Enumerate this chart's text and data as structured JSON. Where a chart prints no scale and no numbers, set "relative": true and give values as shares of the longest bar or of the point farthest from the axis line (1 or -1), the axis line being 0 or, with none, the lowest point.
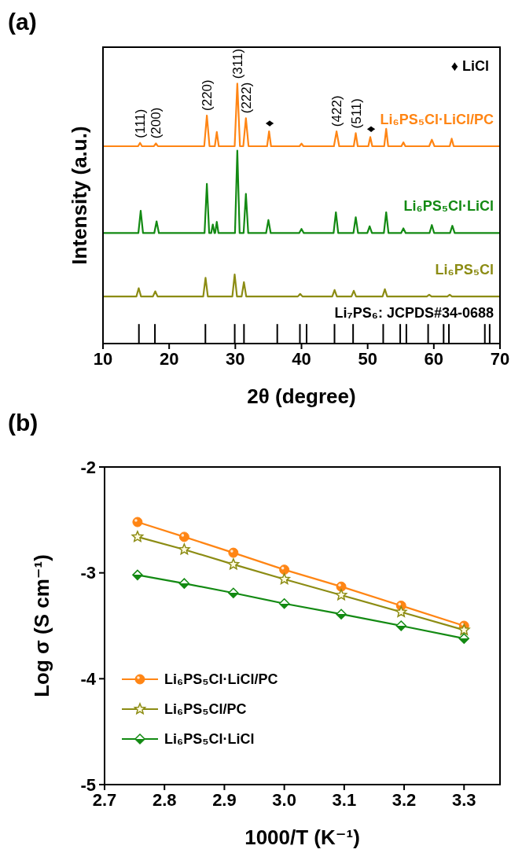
{
  "chart_data": [
    {
      "type": "line",
      "title": "(a)",
      "xlabel": "2θ (degree)",
      "ylabel": "Intensity (a.u.)",
      "relative": true,
      "xlim": [
        10,
        70
      ],
      "xticks": [
        10,
        20,
        30,
        40,
        50,
        60,
        70
      ],
      "marker": "none",
      "legend": false,
      "series": [
        {
          "name": "Li₆PS₅Cl·LiCl/PC",
          "color": "#ff8514",
          "x": [
            10,
            15.3,
            15.6,
            15.9,
            17.7,
            18.0,
            18.3,
            25.3,
            25.7,
            26.1,
            26.9,
            27.2,
            27.5,
            29.9,
            30.3,
            30.7,
            31.2,
            31.6,
            32.0,
            34.8,
            35.1,
            35.4,
            39.7,
            40.0,
            40.3,
            44.9,
            45.3,
            45.7,
            47.9,
            48.2,
            48.5,
            50.1,
            50.4,
            50.7,
            52.5,
            52.8,
            53.1,
            55.1,
            55.4,
            55.7,
            59.3,
            59.7,
            60.1,
            62.4,
            62.7,
            63.0,
            70
          ],
          "values": [
            0.759,
            0.759,
            0.772,
            0.759,
            0.759,
            0.77,
            0.759,
            0.759,
            0.877,
            0.759,
            0.759,
            0.814,
            0.759,
            0.759,
            1.0,
            0.759,
            0.759,
            0.867,
            0.759,
            0.759,
            0.816,
            0.759,
            0.759,
            0.769,
            0.759,
            0.759,
            0.816,
            0.759,
            0.759,
            0.809,
            0.759,
            0.759,
            0.794,
            0.759,
            0.759,
            0.826,
            0.759,
            0.759,
            0.774,
            0.759,
            0.759,
            0.784,
            0.759,
            0.759,
            0.788,
            0.759,
            0.759
          ]
        },
        {
          "name": "Li₆PS₅Cl·LiCl",
          "color": "#138a13",
          "x": [
            10,
            15.35,
            15.7,
            16.05,
            17.75,
            18.1,
            18.45,
            25.35,
            25.7,
            26.05,
            26.35,
            26.6,
            26.85,
            26.95,
            27.2,
            27.45,
            29.95,
            30.3,
            30.65,
            31.25,
            31.6,
            31.95,
            34.65,
            35.0,
            35.35,
            39.65,
            40.0,
            40.35,
            44.85,
            45.2,
            45.55,
            47.85,
            48.2,
            48.55,
            49.95,
            50.3,
            50.65,
            52.45,
            52.8,
            53.15,
            55.05,
            55.4,
            55.75,
            59.35,
            59.7,
            60.05,
            62.45,
            62.8,
            63.15,
            70
          ],
          "values": [
            0.425,
            0.425,
            0.511,
            0.425,
            0.425,
            0.47,
            0.425,
            0.425,
            0.614,
            0.425,
            0.425,
            0.458,
            0.425,
            0.425,
            0.468,
            0.425,
            0.425,
            0.742,
            0.425,
            0.425,
            0.576,
            0.425,
            0.425,
            0.475,
            0.425,
            0.425,
            0.441,
            0.425,
            0.425,
            0.505,
            0.425,
            0.425,
            0.486,
            0.425,
            0.425,
            0.451,
            0.425,
            0.425,
            0.505,
            0.425,
            0.425,
            0.443,
            0.425,
            0.425,
            0.456,
            0.425,
            0.425,
            0.453,
            0.425,
            0.425
          ]
        },
        {
          "name": "Li₆PS₅Cl",
          "color": "#8c8c14",
          "x": [
            10,
            15.05,
            15.4,
            15.75,
            17.55,
            17.9,
            18.25,
            25.15,
            25.5,
            25.85,
            29.55,
            29.9,
            30.25,
            30.95,
            31.3,
            31.65,
            39.45,
            39.8,
            40.15,
            44.65,
            45.0,
            45.35,
            47.55,
            47.9,
            48.25,
            52.25,
            52.6,
            52.95,
            58.95,
            59.3,
            59.65,
            62.05,
            62.4,
            62.75,
            70
          ],
          "values": [
            0.181,
            0.181,
            0.213,
            0.181,
            0.181,
            0.201,
            0.181,
            0.181,
            0.253,
            0.181,
            0.181,
            0.266,
            0.181,
            0.181,
            0.236,
            0.181,
            0.181,
            0.191,
            0.181,
            0.181,
            0.206,
            0.181,
            0.181,
            0.203,
            0.181,
            0.181,
            0.209,
            0.181,
            0.181,
            0.188,
            0.181,
            0.181,
            0.188,
            0.181,
            0.181
          ]
        },
        {
          "type": "bar",
          "name": "Li₇PS₆: JCPDS#34-0688",
          "color": "#000000",
          "x": [
            15.43,
            17.85,
            25.48,
            29.91,
            31.31,
            36.34,
            39.76,
            40.77,
            44.99,
            47.8,
            52.35,
            54.92,
            55.85,
            59.14,
            61.48,
            62.28,
            67.71,
            68.44
          ],
          "values": [
            0.075,
            0.075,
            0.075,
            0.075,
            0.075,
            0.075,
            0.075,
            0.075,
            0.075,
            0.075,
            0.075,
            0.075,
            0.075,
            0.075,
            0.075,
            0.075,
            0.075,
            0.075
          ]
        }
      ],
      "annotations": [
        {
          "text": "(111)",
          "x": 15.6,
          "y": 0.772
        },
        {
          "text": "(200)",
          "x": 18.0,
          "y": 0.77
        },
        {
          "text": "(220)",
          "x": 25.7,
          "y": 0.877
        },
        {
          "text": "(311)",
          "x": 30.3,
          "y": 1.0
        },
        {
          "text": "(222)",
          "x": 31.6,
          "y": 0.867
        },
        {
          "text": "♦",
          "x": 35.1,
          "y": 0.816
        },
        {
          "text": "(422)",
          "x": 45.3,
          "y": 0.816
        },
        {
          "text": "(511)",
          "x": 48.2,
          "y": 0.809
        },
        {
          "text": "♦",
          "x": 50.4,
          "y": 0.794
        },
        "♦ LiCl"
      ]
    },
    {
      "type": "line",
      "title": "(b)",
      "xlabel": "1000/T (K⁻¹)",
      "ylabel": "Log σ  (S cm⁻¹)",
      "xlim": [
        2.7,
        3.36
      ],
      "xticks": [
        2.7,
        2.8,
        2.9,
        {
          "value": 3,
          "label": "3.0"
        },
        3.1,
        3.2,
        3.3
      ],
      "ylim": [
        -5,
        -2
      ],
      "yticks": [
        -2,
        -3,
        -4,
        -5
      ],
      "legend": "bottom left",
      "series": [
        {
          "name": "Li₆PS₅Cl·LiCl/PC",
          "color": "#ff8514",
          "marker": "circle",
          "x": [
            2.755,
            2.833,
            2.915,
            3.0,
            3.095,
            3.195,
            3.3
          ],
          "values": [
            -2.52,
            -2.66,
            -2.81,
            -2.97,
            -3.13,
            -3.31,
            -3.5
          ]
        },
        {
          "name": "Li₆PS₅Cl/PC",
          "color": "#8c8c14",
          "marker": "star",
          "x": [
            2.755,
            2.833,
            2.915,
            3.0,
            3.095,
            3.195,
            3.3
          ],
          "values": [
            -2.66,
            -2.78,
            -2.92,
            -3.06,
            -3.21,
            -3.37,
            -3.54
          ]
        },
        {
          "name": "Li₆PS₅Cl·LiCl",
          "color": "#138a13",
          "marker": "diamond",
          "x": [
            2.755,
            2.833,
            2.915,
            3.0,
            3.095,
            3.195,
            3.3
          ],
          "values": [
            -3.02,
            -3.1,
            -3.19,
            -3.29,
            -3.39,
            -3.5,
            -3.62
          ]
        }
      ]
    }
  ]
}
